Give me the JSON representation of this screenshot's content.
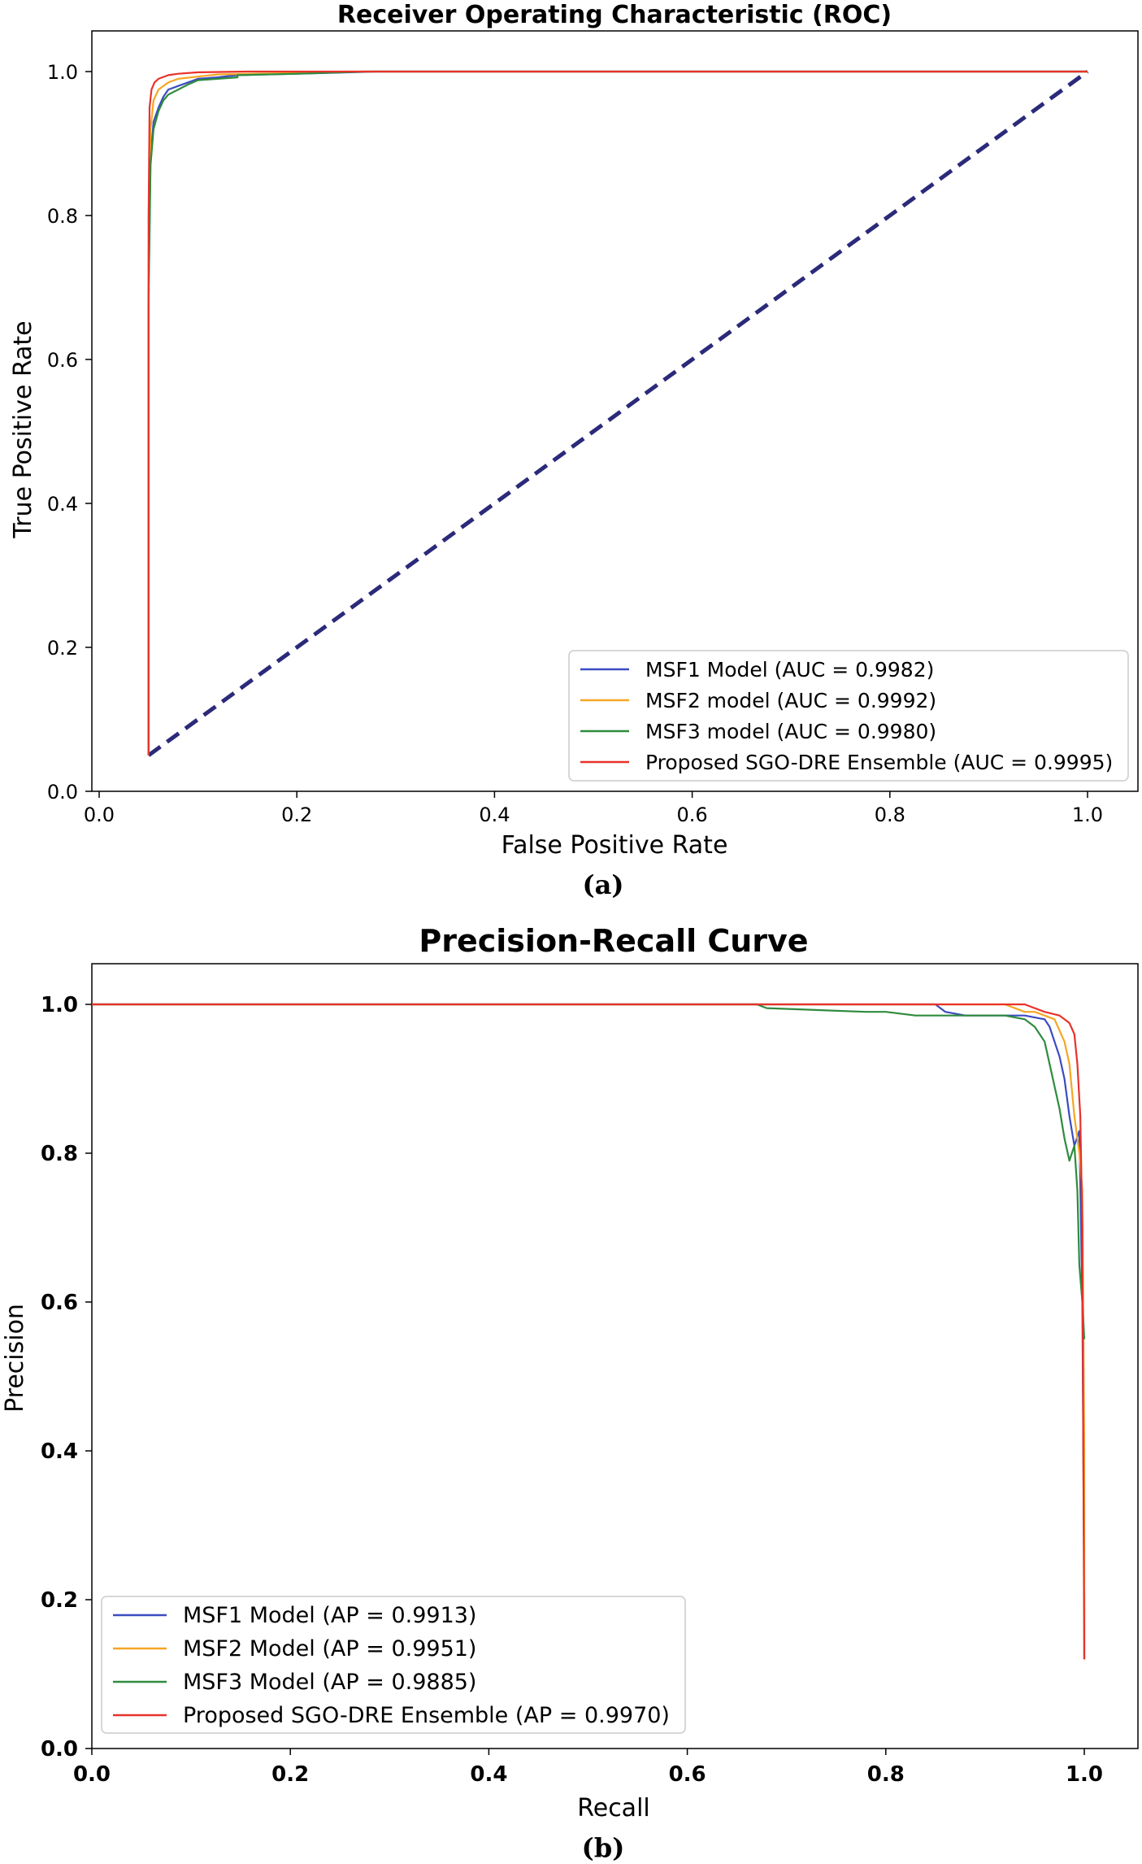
{
  "chart_data": [
    {
      "type": "line",
      "title": "Receiver Operating Characteristic (ROC)",
      "xlabel": "False Positive Rate",
      "ylabel": "True Positive Rate",
      "xlim": [
        0,
        1.0
      ],
      "ylim": [
        0,
        1.0
      ],
      "xticks": [
        "0.0",
        "0.2",
        "0.4",
        "0.6",
        "0.8",
        "1.0"
      ],
      "yticks": [
        "0.0",
        "0.2",
        "0.4",
        "0.6",
        "0.8",
        "1.0"
      ],
      "legend_position": "lower-right",
      "sublabel": "(a)",
      "baseline": {
        "x": [
          0.05,
          1.0
        ],
        "y": [
          0.05,
          1.0
        ],
        "color": "#2b2a7a",
        "style": "dashed"
      },
      "series": [
        {
          "name": "MSF1 Model (AUC = 0.9982)",
          "color": "#3b4cc0",
          "x": [
            0.05,
            0.05,
            0.052,
            0.055,
            0.06,
            0.065,
            0.07,
            0.08,
            0.09,
            0.1,
            0.12,
            0.14,
            0.2,
            0.28,
            1.0
          ],
          "y": [
            0.05,
            0.7,
            0.88,
            0.93,
            0.95,
            0.965,
            0.975,
            0.98,
            0.985,
            0.99,
            0.992,
            0.995,
            0.997,
            1.0,
            1.0
          ]
        },
        {
          "name": "MSF2 model (AUC = 0.9992)",
          "color": "#f5a623",
          "x": [
            0.05,
            0.05,
            0.052,
            0.055,
            0.06,
            0.07,
            0.08,
            0.1,
            0.12,
            0.2,
            0.25,
            1.0
          ],
          "y": [
            0.05,
            0.75,
            0.92,
            0.96,
            0.975,
            0.985,
            0.99,
            0.993,
            0.996,
            0.998,
            1.0,
            1.0
          ]
        },
        {
          "name": "MSF3 model (AUC = 0.9980)",
          "color": "#2e8b3d",
          "x": [
            0.05,
            0.05,
            0.052,
            0.055,
            0.06,
            0.065,
            0.07,
            0.08,
            0.09,
            0.1,
            0.12,
            0.14,
            0.14,
            0.2,
            0.27,
            1.0
          ],
          "y": [
            0.05,
            0.68,
            0.87,
            0.92,
            0.945,
            0.96,
            0.968,
            0.975,
            0.982,
            0.988,
            0.99,
            0.992,
            0.995,
            0.997,
            1.0,
            1.0
          ]
        },
        {
          "name": "Proposed SGO-DRE Ensemble (AUC = 0.9995)",
          "color": "#e8322a",
          "x": [
            0.05,
            0.05,
            0.051,
            0.053,
            0.056,
            0.06,
            0.07,
            0.08,
            0.1,
            0.15,
            0.2,
            1.0
          ],
          "y": [
            0.05,
            0.8,
            0.95,
            0.975,
            0.985,
            0.99,
            0.995,
            0.997,
            0.999,
            1.0,
            1.0,
            1.0
          ]
        }
      ]
    },
    {
      "type": "line",
      "title": "Precision-Recall Curve",
      "xlabel": "Recall",
      "ylabel": "Precision",
      "xlim": [
        0,
        1.0
      ],
      "ylim": [
        0,
        1.05
      ],
      "xticks": [
        "0.0",
        "0.2",
        "0.4",
        "0.6",
        "0.8",
        "1.0"
      ],
      "yticks": [
        "0.0",
        "0.2",
        "0.4",
        "0.6",
        "0.8",
        "1.0"
      ],
      "legend_position": "lower-left",
      "sublabel": "(b)",
      "series": [
        {
          "name": "MSF1 Model  (AP = 0.9913)",
          "color": "#3b4cc0",
          "x": [
            0.0,
            0.85,
            0.86,
            0.88,
            0.9,
            0.92,
            0.94,
            0.96,
            0.965,
            0.97,
            0.975,
            0.98,
            0.985,
            0.99,
            0.995,
            0.998,
            1.0,
            1.0
          ],
          "y": [
            1.0,
            1.0,
            0.99,
            0.985,
            0.985,
            0.985,
            0.985,
            0.98,
            0.97,
            0.95,
            0.93,
            0.9,
            0.85,
            0.81,
            0.83,
            0.6,
            0.2,
            0.12
          ]
        },
        {
          "name": "MSF2 Model  (AP = 0.9951)",
          "color": "#f5a623",
          "x": [
            0.0,
            0.9,
            0.92,
            0.94,
            0.95,
            0.96,
            0.97,
            0.975,
            0.98,
            0.985,
            0.99,
            0.995,
            0.998,
            1.0,
            1.0
          ],
          "y": [
            1.0,
            1.0,
            1.0,
            0.99,
            0.99,
            0.985,
            0.98,
            0.965,
            0.95,
            0.92,
            0.85,
            0.8,
            0.75,
            0.4,
            0.12
          ]
        },
        {
          "name": "MSF3 Model  (AP = 0.9885)",
          "color": "#2e8b3d",
          "x": [
            0.0,
            0.67,
            0.68,
            0.78,
            0.8,
            0.83,
            0.86,
            0.88,
            0.9,
            0.92,
            0.94,
            0.95,
            0.96,
            0.965,
            0.97,
            0.975,
            0.98,
            0.985,
            0.99,
            0.993,
            0.995,
            0.998,
            1.0
          ],
          "y": [
            1.0,
            1.0,
            0.995,
            0.99,
            0.99,
            0.985,
            0.985,
            0.985,
            0.985,
            0.985,
            0.98,
            0.97,
            0.95,
            0.92,
            0.89,
            0.86,
            0.82,
            0.79,
            0.81,
            0.75,
            0.65,
            0.6,
            0.55
          ]
        },
        {
          "name": "Proposed SGO-DRE Ensemble (AP = 0.9970)",
          "color": "#e8322a",
          "x": [
            0.0,
            0.94,
            0.96,
            0.975,
            0.98,
            0.985,
            0.99,
            0.993,
            0.996,
            0.998,
            0.999,
            1.0
          ],
          "y": [
            1.0,
            1.0,
            0.99,
            0.985,
            0.98,
            0.975,
            0.96,
            0.92,
            0.85,
            0.7,
            0.4,
            0.12
          ]
        }
      ]
    }
  ]
}
